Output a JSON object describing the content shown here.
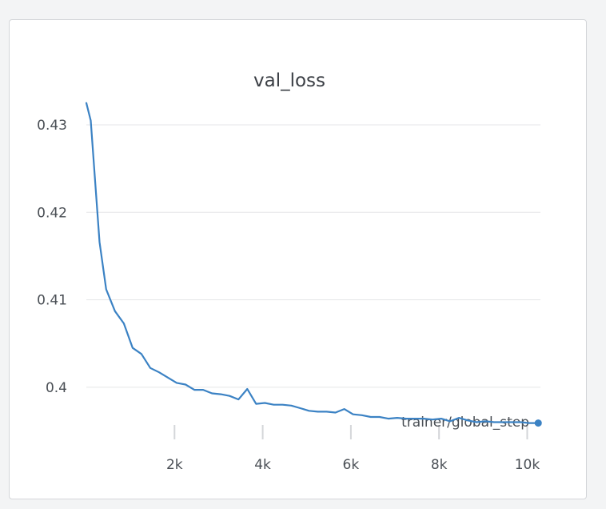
{
  "colors": {
    "series": "#3b82c4",
    "grid": "#e5e6e8",
    "tick": "#d4d6d9"
  },
  "chart_data": {
    "type": "line",
    "title": "val_loss",
    "xlabel": "trainer/global_step",
    "ylabel": "",
    "xlim": [
      0,
      10300
    ],
    "ylim": [
      0.3944,
      0.4333
    ],
    "x_ticks": [
      2000,
      4000,
      6000,
      8000,
      10000
    ],
    "x_tick_labels": [
      "2k",
      "4k",
      "6k",
      "8k",
      "10k"
    ],
    "y_ticks": [
      0.4,
      0.41,
      0.42,
      0.43
    ],
    "y_tick_labels": [
      "0.4",
      "0.41",
      "0.42",
      "0.43"
    ],
    "grid": "horizontal",
    "legend": "none",
    "series": [
      {
        "x": [
          0,
          100,
          300,
          450,
          650,
          850,
          1050,
          1250,
          1450,
          1650,
          1850,
          2050,
          2250,
          2450,
          2650,
          2850,
          3050,
          3250,
          3450,
          3650,
          3850,
          4050,
          4250,
          4450,
          4650,
          4850,
          5050,
          5250,
          5450,
          5650,
          5850,
          6050,
          6250,
          6450,
          6650,
          6850,
          7050,
          7250,
          7450,
          7650,
          7850,
          8050,
          8250,
          8450,
          8650,
          8850,
          9050,
          9250,
          9450,
          9650,
          9850,
          10050,
          10250
        ],
        "y": [
          0.4325,
          0.4305,
          0.4166,
          0.4112,
          0.4087,
          0.4073,
          0.4045,
          0.4038,
          0.4022,
          0.4017,
          0.4011,
          0.4005,
          0.4003,
          0.3997,
          0.3997,
          0.3993,
          0.3992,
          0.399,
          0.3986,
          0.3998,
          0.3981,
          0.3982,
          0.398,
          0.398,
          0.3979,
          0.3976,
          0.3973,
          0.3972,
          0.3972,
          0.3971,
          0.3975,
          0.3969,
          0.3968,
          0.3966,
          0.3966,
          0.3964,
          0.3965,
          0.3964,
          0.3964,
          0.3964,
          0.3963,
          0.3964,
          0.3961,
          0.3965,
          0.3962,
          0.396,
          0.3961,
          0.396,
          0.396,
          0.396,
          0.396,
          0.3959,
          0.3959
        ]
      }
    ]
  }
}
